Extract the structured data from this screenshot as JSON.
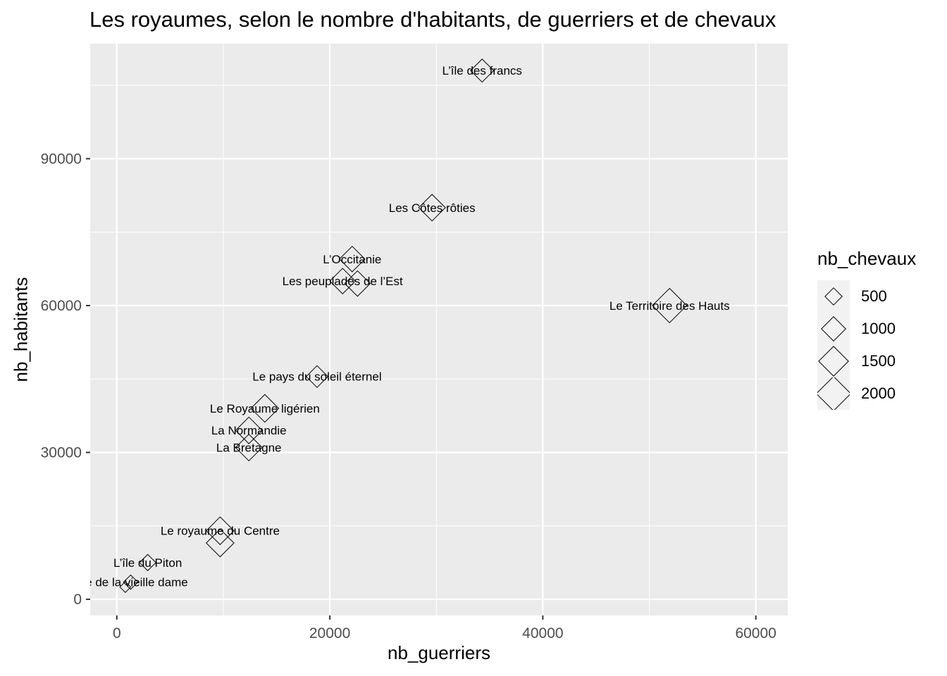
{
  "chart_data": {
    "type": "scatter",
    "title": "Les royaumes, selon le nombre d'habitants, de guerriers et de chevaux",
    "xlabel": "nb_guerriers",
    "ylabel": "nb_habitants",
    "xlim": [
      -2500,
      63000
    ],
    "ylim": [
      -3300,
      113500
    ],
    "x_ticks": [
      0,
      20000,
      40000,
      60000
    ],
    "y_ticks": [
      0,
      30000,
      60000,
      90000
    ],
    "x_tick_labels": [
      "0",
      "20000",
      "40000",
      "60000"
    ],
    "y_tick_labels": [
      "0",
      "30000",
      "60000",
      "90000"
    ],
    "grid": true,
    "size_legend": {
      "title": "nb_chevaux",
      "entries": [
        {
          "value": 500,
          "label": "500"
        },
        {
          "value": 1000,
          "label": "1000"
        },
        {
          "value": 1500,
          "label": "1500"
        },
        {
          "value": 2000,
          "label": "2000"
        }
      ],
      "placement": "right"
    },
    "points": [
      {
        "label": "L’île des francs",
        "x": 34300,
        "y": 108000,
        "chevaux": 900
      },
      {
        "label": "Les Côtes rôties",
        "x": 29600,
        "y": 80000,
        "chevaux": 1200
      },
      {
        "label": "L’Occitanie",
        "x": 22100,
        "y": 69500,
        "chevaux": 1100
      },
      {
        "label": "Les peuplades de l’Est",
        "x": 21200,
        "y": 65000,
        "chevaux": 1100
      },
      {
        "label": "",
        "x": 22600,
        "y": 64500,
        "chevaux": 1100
      },
      {
        "label": "Le Territoire des Hauts",
        "x": 51900,
        "y": 60000,
        "chevaux": 2000
      },
      {
        "label": "Le pays du soleil éternel",
        "x": 18800,
        "y": 45500,
        "chevaux": 800
      },
      {
        "label": "Le Royaume ligérien",
        "x": 13900,
        "y": 39000,
        "chevaux": 1300
      },
      {
        "label": "La Normandie",
        "x": 12400,
        "y": 34500,
        "chevaux": 1200
      },
      {
        "label": "La Bretagne",
        "x": 12400,
        "y": 31000,
        "chevaux": 1200
      },
      {
        "label": "Le royaume du Centre",
        "x": 9700,
        "y": 14000,
        "chevaux": 1300
      },
      {
        "label": "",
        "x": 9700,
        "y": 11500,
        "chevaux": 1300
      },
      {
        "label": "L’île du Piton",
        "x": 2900,
        "y": 7500,
        "chevaux": 450
      },
      {
        "label": "…e de la vieille dame",
        "x": 1300,
        "y": 3500,
        "chevaux": 350
      },
      {
        "label": "",
        "x": 800,
        "y": 2500,
        "chevaux": 200
      }
    ]
  },
  "colors": {
    "panel": "#ebebeb",
    "grid": "#ffffff",
    "axis_text": "#4d4d4d",
    "point_stroke": "#000000",
    "legend_key_bg": "#f2f2f2"
  }
}
